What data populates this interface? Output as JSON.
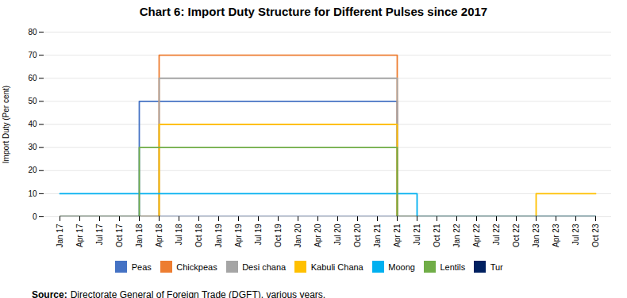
{
  "chart_data": {
    "type": "step",
    "title": "Chart 6: Import Duty Structure for Different Pulses since 2017",
    "ylabel": "Import Duty (Per cent)",
    "source_label": "Source:",
    "source": "Directorate General of Foreign Trade (DGFT), various years.",
    "categories": [
      "Jan 17",
      "Apr 17",
      "Jul 17",
      "Oct 17",
      "Jan 18",
      "Apr 18",
      "Jul 18",
      "Oct 18",
      "Jan 19",
      "Apr 19",
      "Jul 19",
      "Oct 19",
      "Jan 20",
      "Apr 20",
      "Jul 20",
      "Oct 20",
      "Jan 21",
      "Apr 21",
      "Jul 21",
      "Oct 21",
      "Jan 22",
      "Apr 22",
      "Jul 22",
      "Oct 22",
      "Jan 23",
      "Apr 23",
      "Jul 23",
      "Oct 23"
    ],
    "series": [
      {
        "name": "Peas",
        "color": "#4472C4",
        "values": [
          0,
          0,
          0,
          0,
          50,
          50,
          50,
          50,
          50,
          50,
          50,
          50,
          50,
          50,
          50,
          50,
          50,
          0,
          0,
          0,
          0,
          0,
          0,
          0,
          0,
          0,
          0,
          0
        ]
      },
      {
        "name": "Chickpeas",
        "color": "#ED7D31",
        "values": [
          0,
          0,
          0,
          0,
          0,
          70,
          70,
          70,
          70,
          70,
          70,
          70,
          70,
          70,
          70,
          70,
          70,
          0,
          0,
          0,
          0,
          0,
          0,
          0,
          0,
          0,
          0,
          0
        ]
      },
      {
        "name": "Desi chana",
        "color": "#A5A5A5",
        "values": [
          0,
          0,
          0,
          0,
          0,
          60,
          60,
          60,
          60,
          60,
          60,
          60,
          60,
          60,
          60,
          60,
          60,
          0,
          0,
          0,
          0,
          0,
          0,
          0,
          0,
          0,
          0,
          0
        ]
      },
      {
        "name": "Kabuli Chana",
        "color": "#FFC000",
        "values": [
          0,
          0,
          0,
          0,
          0,
          40,
          40,
          40,
          40,
          40,
          40,
          40,
          40,
          40,
          40,
          40,
          40,
          0,
          0,
          0,
          0,
          0,
          0,
          0,
          10,
          10,
          10,
          10
        ]
      },
      {
        "name": "Moong",
        "color": "#00B0F0",
        "values": [
          10,
          10,
          10,
          10,
          10,
          10,
          10,
          10,
          10,
          10,
          10,
          10,
          10,
          10,
          10,
          10,
          10,
          10,
          0,
          0,
          0,
          0,
          0,
          0,
          0,
          0,
          0,
          0
        ]
      },
      {
        "name": "Lentils",
        "color": "#70AD47",
        "values": [
          0,
          0,
          0,
          0,
          30,
          30,
          30,
          30,
          30,
          30,
          30,
          30,
          30,
          30,
          30,
          30,
          30,
          0,
          0,
          0,
          0,
          0,
          0,
          0,
          0,
          0,
          0,
          0
        ]
      },
      {
        "name": "Tur",
        "color": "#002060",
        "values": [
          0,
          0,
          0,
          0,
          0,
          0,
          0,
          0,
          0,
          0,
          0,
          0,
          0,
          0,
          0,
          0,
          0,
          0,
          0,
          0,
          0,
          0,
          0,
          0,
          0,
          0,
          0,
          0
        ]
      }
    ],
    "ylim": [
      0,
      80
    ],
    "yticks": [
      0,
      10,
      20,
      30,
      40,
      50,
      60,
      70,
      80
    ],
    "grid": true,
    "legend": "bottom"
  }
}
